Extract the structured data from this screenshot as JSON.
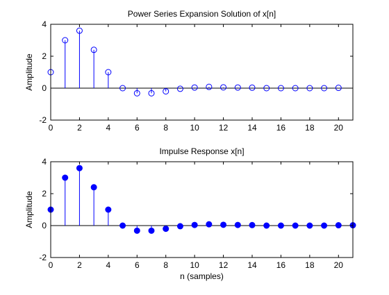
{
  "chart_data": [
    {
      "type": "stem",
      "title": "Power Series Expansion Solution of x[n]",
      "xlabel": "",
      "ylabel": "Amplitude",
      "xlim": [
        0,
        21
      ],
      "ylim": [
        -2,
        4
      ],
      "xticks": [
        0,
        2,
        4,
        6,
        8,
        10,
        12,
        14,
        16,
        18,
        20
      ],
      "yticks": [
        -2,
        0,
        2,
        4
      ],
      "marker": "open-circle",
      "color": "#0000ff",
      "x": [
        0,
        1,
        2,
        3,
        4,
        5,
        6,
        7,
        8,
        9,
        10,
        11,
        12,
        13,
        14,
        15,
        16,
        17,
        18,
        19,
        20
      ],
      "y": [
        1.0,
        3.0,
        3.6,
        2.4,
        1.0,
        0.0,
        -0.32,
        -0.32,
        -0.2,
        -0.04,
        0.04,
        0.08,
        0.05,
        0.04,
        0.03,
        0.0,
        0.0,
        0.0,
        0.0,
        0.0,
        0.02
      ]
    },
    {
      "type": "stem",
      "title": "Impulse Response x[n]",
      "xlabel": "n (samples)",
      "ylabel": "Amplitude",
      "xlim": [
        0,
        21
      ],
      "ylim": [
        -2,
        4
      ],
      "xticks": [
        0,
        2,
        4,
        6,
        8,
        10,
        12,
        14,
        16,
        18,
        20
      ],
      "yticks": [
        -2,
        0,
        2,
        4
      ],
      "marker": "filled-circle",
      "color": "#0000ff",
      "x": [
        0,
        1,
        2,
        3,
        4,
        5,
        6,
        7,
        8,
        9,
        10,
        11,
        12,
        13,
        14,
        15,
        16,
        17,
        18,
        19,
        20,
        21
      ],
      "y": [
        1.0,
        3.0,
        3.6,
        2.4,
        1.0,
        0.0,
        -0.32,
        -0.32,
        -0.2,
        -0.04,
        0.04,
        0.08,
        0.05,
        0.04,
        0.03,
        0.0,
        0.0,
        0.0,
        0.0,
        0.0,
        0.02,
        0.02
      ]
    }
  ]
}
